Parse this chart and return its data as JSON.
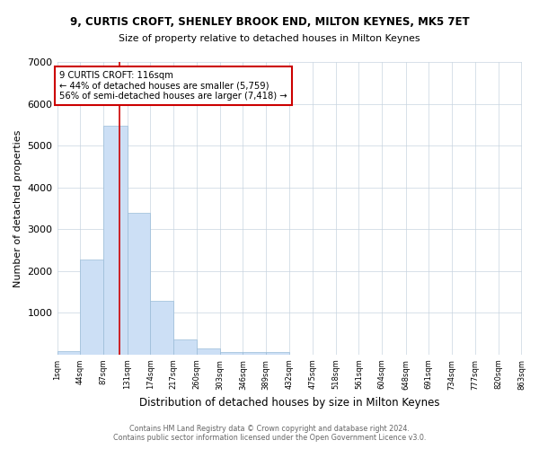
{
  "title1": "9, CURTIS CROFT, SHENLEY BROOK END, MILTON KEYNES, MK5 7ET",
  "title2": "Size of property relative to detached houses in Milton Keynes",
  "xlabel": "Distribution of detached houses by size in Milton Keynes",
  "ylabel": "Number of detached properties",
  "footer1": "Contains HM Land Registry data © Crown copyright and database right 2024.",
  "footer2": "Contains public sector information licensed under the Open Government Licence v3.0.",
  "annotation_line1": "9 CURTIS CROFT: 116sqm",
  "annotation_line2": "← 44% of detached houses are smaller (5,759)",
  "annotation_line3": "56% of semi-detached houses are larger (7,418) →",
  "property_size_sqm": 116,
  "bar_color": "#ccdff5",
  "bar_edge_color": "#9abcd8",
  "red_line_color": "#cc0000",
  "annotation_box_color": "#cc0000",
  "background_color": "#ffffff",
  "grid_color": "#c8d4e0",
  "bins": [
    1,
    44,
    87,
    131,
    174,
    217,
    260,
    303,
    346,
    389,
    432,
    475,
    518,
    561,
    604,
    648,
    691,
    734,
    777,
    820,
    863
  ],
  "counts": [
    75,
    2270,
    5480,
    3380,
    1290,
    365,
    155,
    70,
    55,
    65,
    0,
    0,
    0,
    0,
    0,
    0,
    0,
    0,
    0,
    0
  ],
  "tick_labels": [
    "1sqm",
    "44sqm",
    "87sqm",
    "131sqm",
    "174sqm",
    "217sqm",
    "260sqm",
    "303sqm",
    "346sqm",
    "389sqm",
    "432sqm",
    "475sqm",
    "518sqm",
    "561sqm",
    "604sqm",
    "648sqm",
    "691sqm",
    "734sqm",
    "777sqm",
    "820sqm",
    "863sqm"
  ],
  "ylim": [
    0,
    7000
  ],
  "yticks": [
    0,
    1000,
    2000,
    3000,
    4000,
    5000,
    6000,
    7000
  ]
}
